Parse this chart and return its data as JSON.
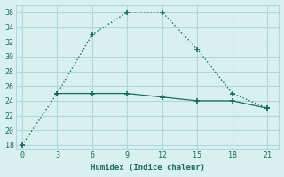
{
  "line1_x": [
    0,
    3,
    6,
    9,
    12,
    15,
    18,
    21
  ],
  "line1_y": [
    18,
    25,
    33,
    36,
    36,
    31,
    25,
    23
  ],
  "line2_x": [
    3,
    6,
    9,
    12,
    15,
    18,
    21
  ],
  "line2_y": [
    25,
    25,
    25,
    24.5,
    24,
    24,
    23
  ],
  "line_color": "#1a6b5a",
  "bg_color": "#d9f0f0",
  "xlabel": "Humidex (Indice chaleur)",
  "xlim": [
    -0.5,
    22
  ],
  "ylim": [
    17.5,
    37
  ],
  "xticks": [
    0,
    3,
    6,
    9,
    12,
    15,
    18,
    21
  ],
  "yticks": [
    18,
    20,
    22,
    24,
    26,
    28,
    30,
    32,
    34,
    36
  ],
  "grid_color": "#b0d8d8",
  "font_color": "#1a6b5a"
}
